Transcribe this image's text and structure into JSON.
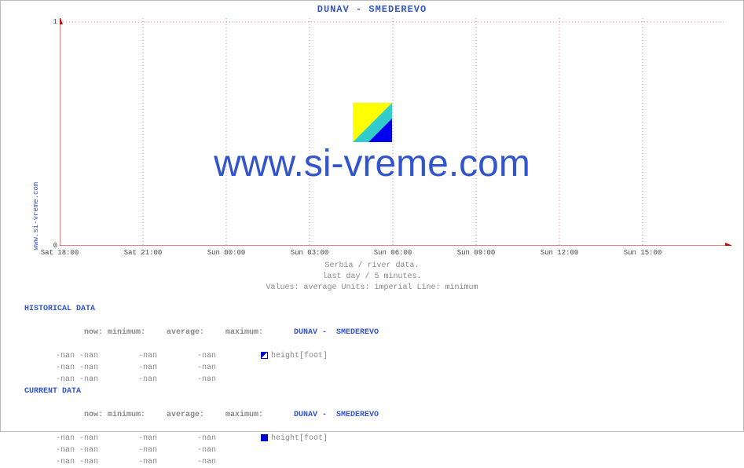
{
  "site_label": "www.si-vreme.com",
  "chart": {
    "title": "DUNAV -  SMEDEREVO",
    "watermark": "www.si-vreme.com",
    "background_color": "#ffffff",
    "border_color": "#bbbbbb",
    "axis_color": "#cc0000",
    "grid_color": "#cc8888",
    "grid_dash": "1 3",
    "title_color": "#3355cc",
    "tick_font_size": 9,
    "ylim": [
      0,
      1
    ],
    "yticks": [
      0,
      1
    ],
    "xticks": [
      {
        "pos": 0.0,
        "label": "Sat 18:00"
      },
      {
        "pos": 0.125,
        "label": "Sat 21:00"
      },
      {
        "pos": 0.25,
        "label": "Sun 00:00"
      },
      {
        "pos": 0.375,
        "label": "Sun 03:00"
      },
      {
        "pos": 0.5,
        "label": "Sun 06:00"
      },
      {
        "pos": 0.625,
        "label": "Sun 09:00"
      },
      {
        "pos": 0.75,
        "label": "Sun 12:00"
      },
      {
        "pos": 0.875,
        "label": "Sun 15:00"
      }
    ],
    "captions": [
      "Serbia / river data.",
      "last day / 5 minutes.",
      "Values: average  Units: imperial  Line: minimum"
    ],
    "caption_color": "#888888"
  },
  "logo": {
    "colors": [
      "#ffff00",
      "#33cccc",
      "#0000ee"
    ]
  },
  "historical": {
    "heading": "HISTORICAL DATA",
    "columns": [
      "now:",
      "minimum:",
      "average:",
      "maximum:"
    ],
    "series_label": "DUNAV -  SMEDEREVO",
    "rows": [
      {
        "cells": [
          "-nan",
          "-nan",
          "-nan",
          "-nan"
        ],
        "marker": "#0000cc",
        "marker_type": "diag",
        "unit": "height[foot]"
      },
      {
        "cells": [
          "-nan",
          "-nan",
          "-nan",
          "-nan"
        ]
      },
      {
        "cells": [
          "-nan",
          "-nan",
          "-nan",
          "-nan"
        ]
      }
    ]
  },
  "current": {
    "heading": "CURRENT DATA",
    "columns": [
      "now:",
      "minimum:",
      "average:",
      "maximum:"
    ],
    "series_label": "DUNAV -  SMEDEREVO",
    "rows": [
      {
        "cells": [
          "-nan",
          "-nan",
          "-nan",
          "-nan"
        ],
        "marker": "#0000cc",
        "marker_type": "square",
        "unit": "height[foot]"
      },
      {
        "cells": [
          "-nan",
          "-nan",
          "-nan",
          "-nan"
        ]
      },
      {
        "cells": [
          "-nan",
          "-nan",
          "-nan",
          "-nan"
        ]
      }
    ]
  }
}
